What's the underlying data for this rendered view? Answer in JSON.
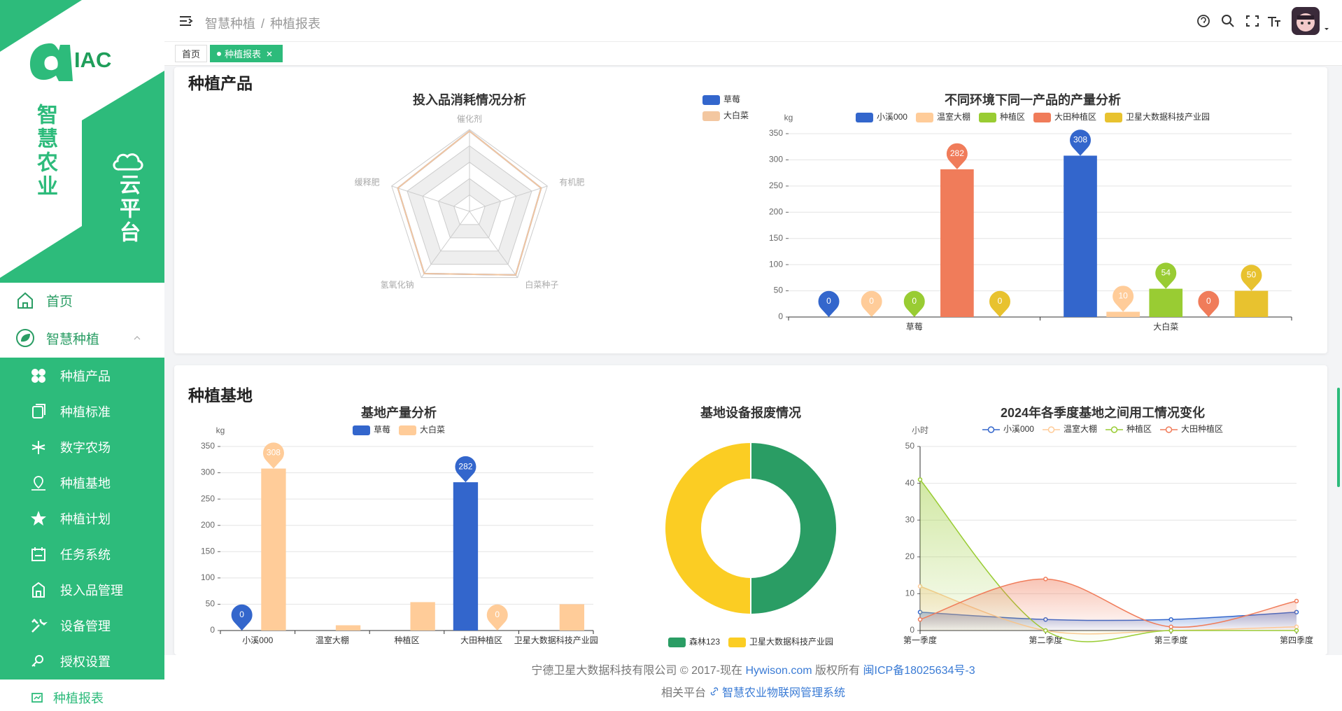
{
  "sidebar": {
    "logo": "IAC",
    "title": "智慧农业",
    "subtitle": "云平台",
    "home": "首页",
    "group": "智慧种植",
    "items": [
      "种植产品",
      "种植标准",
      "数字农场",
      "种植基地",
      "种植计划",
      "任务系统",
      "投入品管理",
      "设备管理",
      "授权设置"
    ],
    "current": "种植报表"
  },
  "header": {
    "breadcrumb": [
      "智慧种植",
      "种植报表"
    ],
    "separator": "/"
  },
  "tabs": [
    "首页",
    "种植报表"
  ],
  "sections": [
    "种植产品",
    "种植基地"
  ],
  "chart_data": [
    {
      "type": "radar",
      "title": "投入品消耗情况分析",
      "indicators": [
        "催化剂",
        "有机肥",
        "白菜种子",
        "氢氧化钠",
        "缓释肥"
      ],
      "rlim": [
        0,
        100
      ],
      "rticks": [
        20,
        40,
        60,
        80,
        100
      ],
      "series": [
        {
          "name": "草莓",
          "color": "#3366cc",
          "values": [
            98,
            92,
            96,
            94,
            92
          ]
        },
        {
          "name": "大白菜",
          "color": "#f3c7a0",
          "values": [
            98,
            92,
            96,
            94,
            92
          ]
        }
      ],
      "legend": "top-right"
    },
    {
      "type": "bar",
      "title": "不同环境下同一产品的产量分析",
      "y_label": "kg",
      "categories": [
        "草莓",
        "大白菜"
      ],
      "series": [
        {
          "name": "小溪000",
          "color": "#3366cc",
          "values": [
            0,
            308
          ]
        },
        {
          "name": "温室大棚",
          "color": "#ffcc99",
          "values": [
            0,
            10
          ]
        },
        {
          "name": "种植区",
          "color": "#99cc33",
          "values": [
            0,
            54
          ]
        },
        {
          "name": "大田种植区",
          "color": "#f07c5a",
          "values": [
            282,
            0
          ]
        },
        {
          "name": "卫星大数据科技产业园",
          "color": "#e8c22f",
          "values": [
            0,
            50
          ]
        }
      ],
      "ylim": [
        0,
        350
      ],
      "yticks": [
        0,
        50,
        100,
        150,
        200,
        250,
        300,
        350
      ],
      "grid": true,
      "pins": "max-min",
      "legend": "top"
    },
    {
      "type": "bar",
      "title": "基地产量分析",
      "y_label": "kg",
      "categories": [
        "小溪000",
        "温室大棚",
        "种植区",
        "大田种植区",
        "卫星大数据科技产业园"
      ],
      "series": [
        {
          "name": "草莓",
          "color": "#3366cc",
          "values": [
            0,
            0,
            0,
            282,
            0
          ]
        },
        {
          "name": "大白菜",
          "color": "#ffcc99",
          "values": [
            308,
            10,
            54,
            0,
            50
          ]
        }
      ],
      "ylim": [
        0,
        350
      ],
      "yticks": [
        0,
        50,
        100,
        150,
        200,
        250,
        300,
        350
      ],
      "grid": true,
      "pins": "max-min",
      "legend": "top"
    },
    {
      "type": "pie",
      "title": "基地设备报废情况",
      "categories": [
        "森林123",
        "卫星大数据科技产业园"
      ],
      "values": [
        50,
        50
      ],
      "colors": [
        "#2a9d64",
        "#fbcd23"
      ],
      "legend": "bottom"
    },
    {
      "type": "line",
      "title": "2024年各季度基地之间用工情况变化",
      "y_label": "小时",
      "categories": [
        "第一季度",
        "第二季度",
        "第三季度",
        "第四季度"
      ],
      "series": [
        {
          "name": "小溪000",
          "color": "#3366cc",
          "values": [
            5,
            3,
            3,
            5
          ]
        },
        {
          "name": "温室大棚",
          "color": "#ffcc99",
          "values": [
            12,
            0,
            0,
            1
          ]
        },
        {
          "name": "种植区",
          "color": "#99cc33",
          "values": [
            41,
            0,
            0,
            0
          ]
        },
        {
          "name": "大田种植区",
          "color": "#f07c5a",
          "values": [
            3,
            14,
            1,
            8
          ]
        }
      ],
      "ylim": [
        0,
        50
      ],
      "yticks": [
        0,
        10,
        20,
        30,
        40,
        50
      ],
      "grid": true,
      "smooth": true,
      "area": true,
      "legend": "top"
    }
  ],
  "footer": {
    "copyright": "宁德卫星大数据科技有限公司 © 2017-现在",
    "site": "Hywison.com",
    "rights": "版权所有",
    "icp": "闽ICP备18025634号-3",
    "related": "相关平台",
    "platform": "智慧农业物联网管理系统"
  }
}
